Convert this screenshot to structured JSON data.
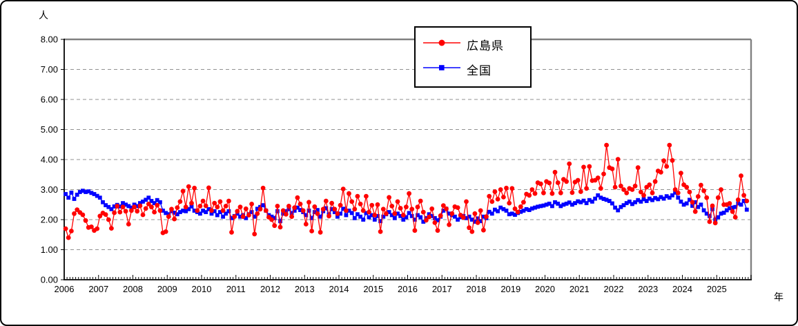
{
  "page": {
    "y_unit": "人",
    "x_unit": "年"
  },
  "legend": {
    "position": "top-center",
    "items": [
      {
        "label": "広島県",
        "color": "#ff0000",
        "marker": "circle"
      },
      {
        "label": "全国",
        "color": "#0000ff",
        "marker": "square"
      }
    ]
  },
  "chart_data": {
    "type": "line",
    "title": "",
    "ylabel": "人",
    "xlabel": "年",
    "ylim": [
      0,
      8
    ],
    "yticks": [
      0,
      1,
      2,
      3,
      4,
      5,
      6,
      7,
      8
    ],
    "ytick_format": "2-decimals",
    "grid": "horizontal-dashed",
    "legend_position": "top-center",
    "x_granularity": "monthly",
    "x_years": [
      "2006",
      "2007",
      "2008",
      "2009",
      "2010",
      "2011",
      "2012",
      "2013",
      "2014",
      "2015",
      "2016",
      "2017",
      "2018",
      "2019",
      "2020",
      "2021",
      "2022",
      "2023",
      "2024",
      "2025"
    ],
    "series": [
      {
        "name": "広島県",
        "color": "#ff0000",
        "marker": "circle",
        "values": [
          1.7,
          1.4,
          1.62,
          2.2,
          2.33,
          2.24,
          2.16,
          1.97,
          1.74,
          1.76,
          1.64,
          1.7,
          2.12,
          2.22,
          2.17,
          2.0,
          1.71,
          2.23,
          2.45,
          2.25,
          2.42,
          2.28,
          1.85,
          2.3,
          2.42,
          2.28,
          2.46,
          2.16,
          2.37,
          2.52,
          2.42,
          2.25,
          2.48,
          2.3,
          1.56,
          1.6,
          2.1,
          2.35,
          2.02,
          2.4,
          2.6,
          2.95,
          2.42,
          3.1,
          2.55,
          3.05,
          2.3,
          2.45,
          2.62,
          2.46,
          3.06,
          2.3,
          2.55,
          2.42,
          2.6,
          2.3,
          2.45,
          2.62,
          1.58,
          2.1,
          2.28,
          2.42,
          2.1,
          2.36,
          2.15,
          2.52,
          1.52,
          2.2,
          2.35,
          3.05,
          2.3,
          2.08,
          2.0,
          1.8,
          2.45,
          1.75,
          2.3,
          2.18,
          2.45,
          2.1,
          2.4,
          2.73,
          2.52,
          2.3,
          1.85,
          2.58,
          1.62,
          2.43,
          2.2,
          1.58,
          2.35,
          2.62,
          2.12,
          2.55,
          2.35,
          2.2,
          2.48,
          3.02,
          2.3,
          2.87,
          2.6,
          2.35,
          2.78,
          2.52,
          2.3,
          2.78,
          2.25,
          2.48,
          2.15,
          2.5,
          1.6,
          2.35,
          2.2,
          2.74,
          2.45,
          2.2,
          2.6,
          2.38,
          2.15,
          2.42,
          2.87,
          2.35,
          1.64,
          2.42,
          2.62,
          2.25,
          1.98,
          2.09,
          2.36,
          1.9,
          1.64,
          2.13,
          2.47,
          2.36,
          1.83,
          2.2,
          2.43,
          2.4,
          2.15,
          2.07,
          2.6,
          1.73,
          1.6,
          2.2,
          1.9,
          2.3,
          1.65,
          2.1,
          2.78,
          2.6,
          2.93,
          2.68,
          3.0,
          2.75,
          3.05,
          2.55,
          3.04,
          2.36,
          2.25,
          2.43,
          2.58,
          2.85,
          2.81,
          3.0,
          2.87,
          3.23,
          3.19,
          2.89,
          3.27,
          3.22,
          2.87,
          3.58,
          3.23,
          2.89,
          3.34,
          3.27,
          3.86,
          2.9,
          3.25,
          3.31,
          2.93,
          3.75,
          3.04,
          3.77,
          3.3,
          3.31,
          3.39,
          3.04,
          3.52,
          4.48,
          3.73,
          3.69,
          3.08,
          4.01,
          3.12,
          3.0,
          2.89,
          3.04,
          3.0,
          3.12,
          3.73,
          2.92,
          2.81,
          3.08,
          3.16,
          2.89,
          3.27,
          3.62,
          3.58,
          3.96,
          3.77,
          4.48,
          3.97,
          3.0,
          2.89,
          3.55,
          3.16,
          3.08,
          2.92,
          2.58,
          2.27,
          2.77,
          3.15,
          2.96,
          2.73,
          1.93,
          2.46,
          1.89,
          2.73,
          3.0,
          2.5,
          2.5,
          2.54,
          2.27,
          2.08,
          2.66,
          3.46,
          2.81,
          2.62
        ]
      },
      {
        "name": "全国",
        "color": "#0000ff",
        "marker": "square",
        "values": [
          2.85,
          2.73,
          2.9,
          2.69,
          2.83,
          2.92,
          2.96,
          2.92,
          2.94,
          2.89,
          2.85,
          2.79,
          2.73,
          2.58,
          2.48,
          2.42,
          2.35,
          2.44,
          2.49,
          2.44,
          2.55,
          2.5,
          2.45,
          2.4,
          2.5,
          2.45,
          2.55,
          2.6,
          2.66,
          2.73,
          2.62,
          2.55,
          2.65,
          2.58,
          2.3,
          2.22,
          2.18,
          2.28,
          2.23,
          2.18,
          2.25,
          2.3,
          2.28,
          2.35,
          2.44,
          2.3,
          2.25,
          2.2,
          2.3,
          2.25,
          2.35,
          2.2,
          2.28,
          2.15,
          2.25,
          2.1,
          2.2,
          2.28,
          2.05,
          2.12,
          2.2,
          2.1,
          2.15,
          2.05,
          2.18,
          2.25,
          2.1,
          2.36,
          2.42,
          2.48,
          2.3,
          2.15,
          2.1,
          2.05,
          2.28,
          1.95,
          2.2,
          2.28,
          2.35,
          2.22,
          2.3,
          2.4,
          2.32,
          2.25,
          2.15,
          2.3,
          2.05,
          2.25,
          2.32,
          2.1,
          2.28,
          2.38,
          2.18,
          2.35,
          2.25,
          2.1,
          2.2,
          2.36,
          2.15,
          2.3,
          2.22,
          2.05,
          2.18,
          2.1,
          2.0,
          2.22,
          2.08,
          2.15,
          2.0,
          2.12,
          1.95,
          2.1,
          2.18,
          2.25,
          2.15,
          2.05,
          2.2,
          2.12,
          2.0,
          2.08,
          2.22,
          2.12,
          2.0,
          2.15,
          2.08,
          1.93,
          2.05,
          2.18,
          2.12,
          2.05,
          1.98,
          2.1,
          2.3,
          2.36,
          2.2,
          2.15,
          2.1,
          2.0,
          2.08,
          2.12,
          2.05,
          2.1,
          2.0,
          1.93,
          2.04,
          1.95,
          2.1,
          2.05,
          2.26,
          2.2,
          2.33,
          2.28,
          2.4,
          2.35,
          2.3,
          2.18,
          2.2,
          2.16,
          2.22,
          2.26,
          2.3,
          2.35,
          2.32,
          2.37,
          2.4,
          2.43,
          2.45,
          2.47,
          2.5,
          2.53,
          2.45,
          2.58,
          2.53,
          2.45,
          2.5,
          2.53,
          2.57,
          2.5,
          2.55,
          2.61,
          2.58,
          2.63,
          2.55,
          2.65,
          2.6,
          2.7,
          2.81,
          2.73,
          2.69,
          2.66,
          2.62,
          2.54,
          2.4,
          2.31,
          2.42,
          2.48,
          2.55,
          2.6,
          2.52,
          2.58,
          2.65,
          2.6,
          2.68,
          2.62,
          2.7,
          2.65,
          2.72,
          2.68,
          2.75,
          2.7,
          2.78,
          2.73,
          2.81,
          2.9,
          2.73,
          2.6,
          2.5,
          2.54,
          2.66,
          2.46,
          2.58,
          2.42,
          2.5,
          2.31,
          2.2,
          2.12,
          2.35,
          2.0,
          2.08,
          2.2,
          2.23,
          2.31,
          2.38,
          2.4,
          2.42,
          2.54,
          2.5,
          2.62,
          2.33
        ]
      }
    ]
  }
}
